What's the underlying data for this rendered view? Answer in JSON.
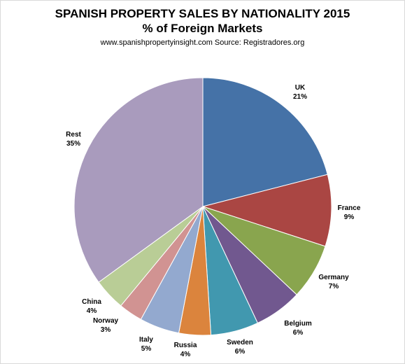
{
  "chart_data": {
    "type": "pie",
    "title": "SPANISH PROPERTY SALES BY NATIONALITY 2015",
    "subtitle": "% of Foreign Markets",
    "source": "www.spanishpropertyinsight.com Source: Registradores.org",
    "categories": [
      "UK",
      "France",
      "Germany",
      "Belgium",
      "Sweden",
      "Russia",
      "Italy",
      "Norway",
      "China",
      "Rest"
    ],
    "values": [
      21,
      9,
      7,
      6,
      6,
      4,
      5,
      3,
      4,
      35
    ],
    "value_labels": [
      "21%",
      "9%",
      "7%",
      "6%",
      "6%",
      "4%",
      "5%",
      "3%",
      "4%",
      "35%"
    ],
    "colors": [
      "#4572A7",
      "#AA4643",
      "#89A54E",
      "#71588F",
      "#4198AF",
      "#DB843D",
      "#93A9CF",
      "#D19392",
      "#B9CD96",
      "#A99BBD"
    ]
  }
}
